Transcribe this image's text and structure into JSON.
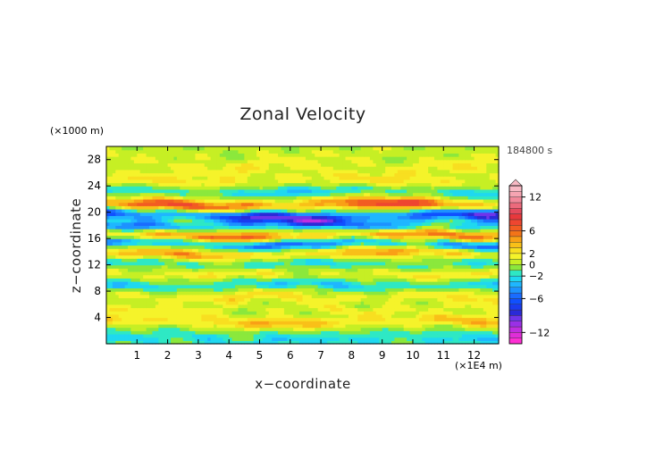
{
  "chart_data": {
    "type": "heatmap",
    "title": "Zonal Velocity",
    "xlabel": "x−coordinate",
    "ylabel": "z−coordinate",
    "x_unit": "(×1E4 m)",
    "y_unit": "(×1000 m)",
    "time_label": "184800 s",
    "xlim": [
      0,
      12.8
    ],
    "ylim": [
      0,
      30
    ],
    "x_ticks": [
      "1",
      "2",
      "3",
      "4",
      "5",
      "6",
      "7",
      "8",
      "9",
      "10",
      "11",
      "12"
    ],
    "y_ticks": [
      "4",
      "8",
      "12",
      "16",
      "20",
      "24",
      "28"
    ],
    "colorbar": {
      "levels": [
        -14,
        -13,
        -12,
        -11,
        -10,
        -9,
        -8,
        -7,
        -6,
        -5,
        -4,
        -3,
        -2,
        -1,
        0,
        1,
        2,
        3,
        4,
        5,
        6,
        7,
        8,
        9,
        10,
        11,
        12,
        13,
        14
      ],
      "colors": [
        "#ff2fd4",
        "#e02ed8",
        "#c02ee0",
        "#9a30e6",
        "#6f34ea",
        "#2a2ad8",
        "#1a3cf0",
        "#1050ff",
        "#1a6cff",
        "#1d92ff",
        "#1fb6ff",
        "#1fd8f0",
        "#2ee8c4",
        "#8be83c",
        "#c6ef24",
        "#f5f32a",
        "#f8df20",
        "#f9c018",
        "#f9a016",
        "#f37418",
        "#f25c22",
        "#ee4630",
        "#e8383c",
        "#e44a5c",
        "#ec6a7c",
        "#f2889a",
        "#f6a4b2",
        "#f8b9c4"
      ],
      "tick_labels": [
        "12",
        "6",
        "2",
        "0",
        "−2",
        "−6",
        "−12"
      ],
      "tick_values": [
        12,
        6,
        2,
        0,
        -2,
        -6,
        -12
      ]
    },
    "bands": [
      {
        "z": 0.4,
        "a": -2.8,
        "b": 0.8,
        "k": 1.1,
        "p": 0.3
      },
      {
        "z": 1.6,
        "a": -1.5,
        "b": 0.9,
        "k": 0.9,
        "p": 1.7
      },
      {
        "z": 3.4,
        "a": 4.0,
        "b": 0.9,
        "k": 0.7,
        "p": 0.6
      },
      {
        "z": 5.4,
        "a": 1.6,
        "b": 0.8,
        "k": 1.0,
        "p": 2.4
      },
      {
        "z": 7.2,
        "a": 2.6,
        "b": 0.8,
        "k": 1.3,
        "p": 0.9
      },
      {
        "z": 9.0,
        "a": -3.2,
        "b": 0.8,
        "k": 0.8,
        "p": 3.1
      },
      {
        "z": 10.6,
        "a": 2.2,
        "b": 0.7,
        "k": 1.5,
        "p": 1.2
      },
      {
        "z": 12.2,
        "a": -2.4,
        "b": 0.7,
        "k": 1.1,
        "p": 0.2
      },
      {
        "z": 13.8,
        "a": 4.6,
        "b": 0.8,
        "k": 0.6,
        "p": 2.0
      },
      {
        "z": 15.2,
        "a": -6.0,
        "b": 0.7,
        "k": 0.9,
        "p": 0.5
      },
      {
        "z": 16.6,
        "a": 6.5,
        "b": 0.8,
        "k": 0.7,
        "p": 1.4
      },
      {
        "z": 18.0,
        "a": -5.5,
        "b": 0.8,
        "k": 0.8,
        "p": 2.6
      },
      {
        "z": 19.5,
        "a": -9.5,
        "b": 0.9,
        "k": 0.6,
        "p": 0.7
      },
      {
        "z": 21.2,
        "a": 8.0,
        "b": 0.9,
        "k": 0.7,
        "p": 1.9
      },
      {
        "z": 23.2,
        "a": -3.0,
        "b": 0.8,
        "k": 0.9,
        "p": 0.4
      },
      {
        "z": 25.0,
        "a": 2.4,
        "b": 1.0,
        "k": 0.8,
        "p": 2.2
      },
      {
        "z": 27.0,
        "a": 1.8,
        "b": 1.1,
        "k": 1.0,
        "p": 1.1
      },
      {
        "z": 29.0,
        "a": 0.8,
        "b": 1.0,
        "k": 1.2,
        "p": 2.8
      }
    ],
    "grid_nx": 128,
    "grid_nz": 60
  }
}
